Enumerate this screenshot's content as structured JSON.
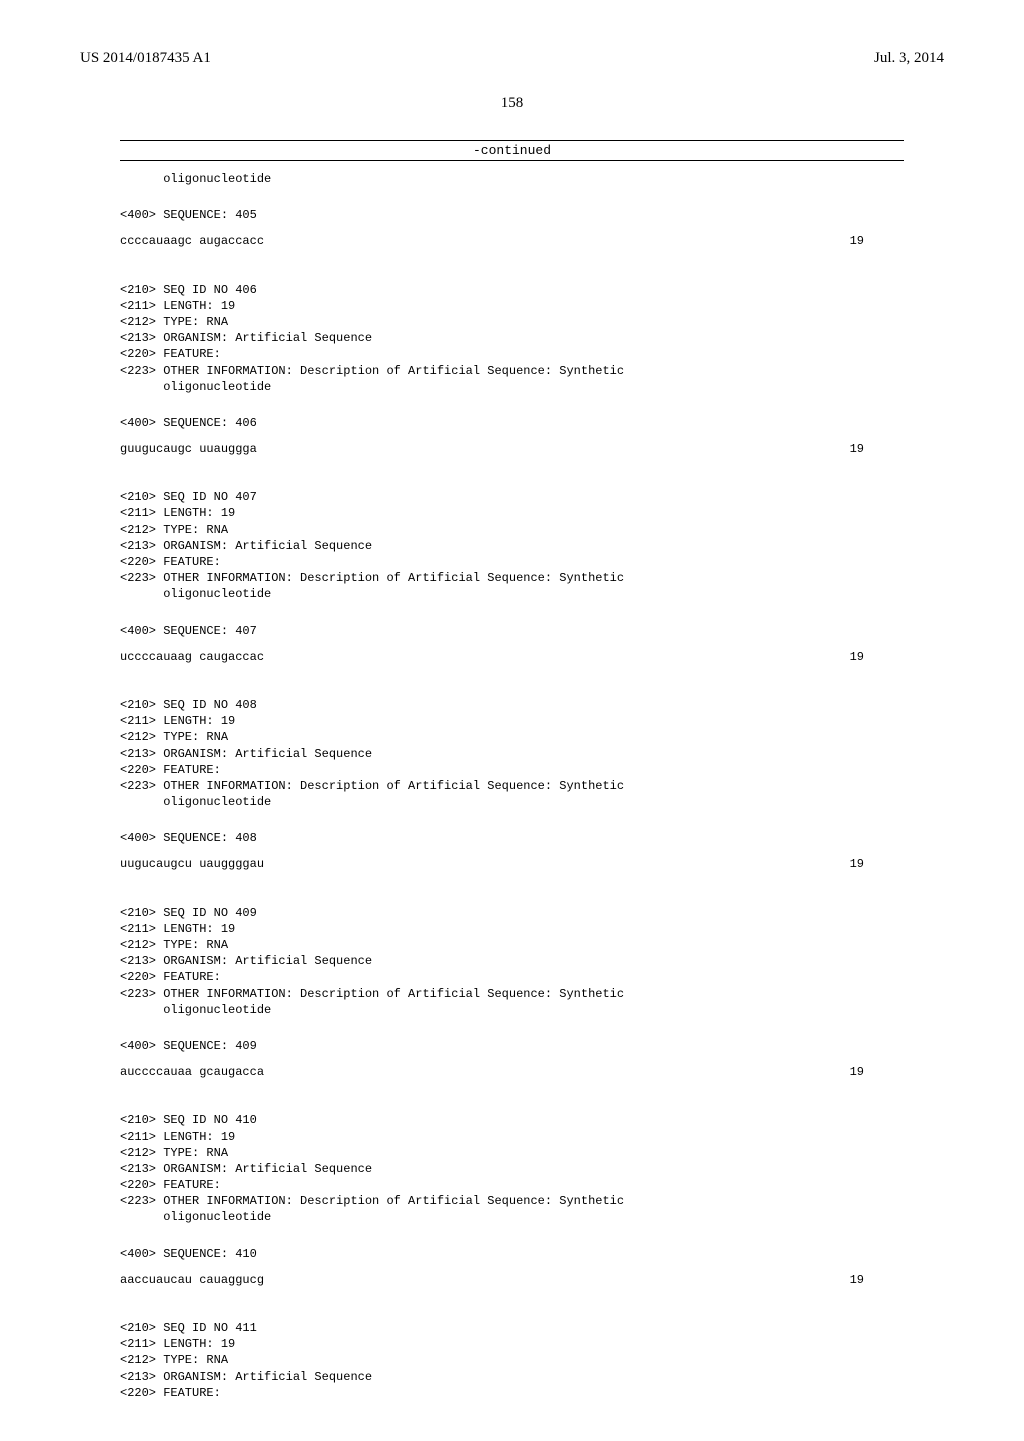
{
  "header": {
    "pub_number": "US 2014/0187435 A1",
    "pub_date": "Jul. 3, 2014"
  },
  "page_number": "158",
  "continued_label": "-continued",
  "intro_line": "      oligonucleotide",
  "entries": [
    {
      "seq_tag_line": "<400> SEQUENCE: 405",
      "sequence": "ccccauaagc augaccacc",
      "length_num": "19",
      "header_lines": [
        "<210> SEQ ID NO 406",
        "<211> LENGTH: 19",
        "<212> TYPE: RNA",
        "<213> ORGANISM: Artificial Sequence",
        "<220> FEATURE:",
        "<223> OTHER INFORMATION: Description of Artificial Sequence: Synthetic",
        "      oligonucleotide"
      ]
    },
    {
      "seq_tag_line": "<400> SEQUENCE: 406",
      "sequence": "guugucaugc uuauggga",
      "length_num": "19",
      "header_lines": [
        "<210> SEQ ID NO 407",
        "<211> LENGTH: 19",
        "<212> TYPE: RNA",
        "<213> ORGANISM: Artificial Sequence",
        "<220> FEATURE:",
        "<223> OTHER INFORMATION: Description of Artificial Sequence: Synthetic",
        "      oligonucleotide"
      ]
    },
    {
      "seq_tag_line": "<400> SEQUENCE: 407",
      "sequence": "uccccauaag caugaccac",
      "length_num": "19",
      "header_lines": [
        "<210> SEQ ID NO 408",
        "<211> LENGTH: 19",
        "<212> TYPE: RNA",
        "<213> ORGANISM: Artificial Sequence",
        "<220> FEATURE:",
        "<223> OTHER INFORMATION: Description of Artificial Sequence: Synthetic",
        "      oligonucleotide"
      ]
    },
    {
      "seq_tag_line": "<400> SEQUENCE: 408",
      "sequence": "uugucaugcu uauggggau",
      "length_num": "19",
      "header_lines": [
        "<210> SEQ ID NO 409",
        "<211> LENGTH: 19",
        "<212> TYPE: RNA",
        "<213> ORGANISM: Artificial Sequence",
        "<220> FEATURE:",
        "<223> OTHER INFORMATION: Description of Artificial Sequence: Synthetic",
        "      oligonucleotide"
      ]
    },
    {
      "seq_tag_line": "<400> SEQUENCE: 409",
      "sequence": "auccccauaa gcaugacca",
      "length_num": "19",
      "header_lines": [
        "<210> SEQ ID NO 410",
        "<211> LENGTH: 19",
        "<212> TYPE: RNA",
        "<213> ORGANISM: Artificial Sequence",
        "<220> FEATURE:",
        "<223> OTHER INFORMATION: Description of Artificial Sequence: Synthetic",
        "      oligonucleotide"
      ]
    },
    {
      "seq_tag_line": "<400> SEQUENCE: 410",
      "sequence": "aaccuaucau cauaggucg",
      "length_num": "19",
      "header_lines": [
        "<210> SEQ ID NO 411",
        "<211> LENGTH: 19",
        "<212> TYPE: RNA",
        "<213> ORGANISM: Artificial Sequence",
        "<220> FEATURE:"
      ]
    }
  ]
}
